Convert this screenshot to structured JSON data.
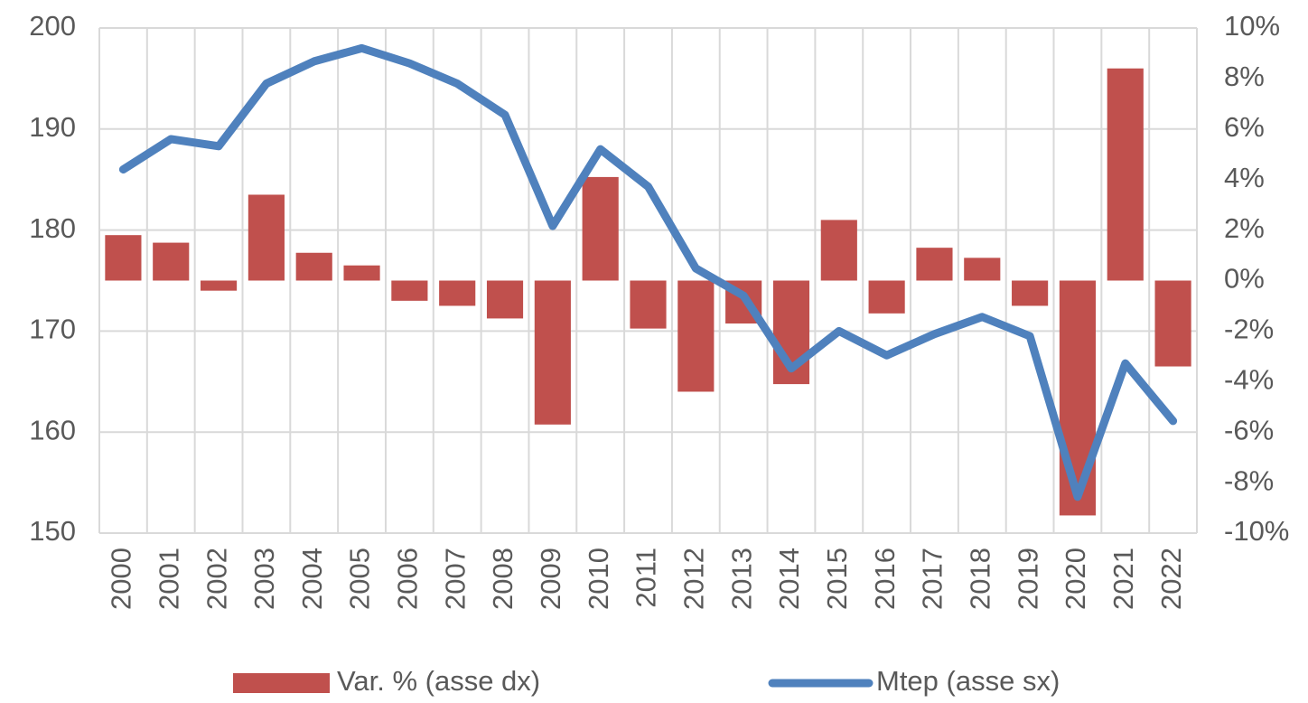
{
  "chart_data": {
    "type": "bar_line",
    "categories": [
      "2000",
      "2001",
      "2002",
      "2003",
      "2004",
      "2005",
      "2006",
      "2007",
      "2008",
      "2009",
      "2010",
      "2011",
      "2012",
      "2013",
      "2014",
      "2015",
      "2016",
      "2017",
      "2018",
      "2019",
      "2020",
      "2021",
      "2022"
    ],
    "series": [
      {
        "name": "Var. % (asse dx)",
        "type": "bar",
        "axis": "y2",
        "color": "#c0504d",
        "values": [
          1.8,
          1.5,
          -0.4,
          3.4,
          1.1,
          0.6,
          -0.8,
          -1.0,
          -1.5,
          -5.7,
          4.1,
          -1.9,
          -4.4,
          -1.7,
          -4.1,
          2.4,
          -1.3,
          1.3,
          0.9,
          -1.0,
          -9.3,
          8.4,
          -3.4
        ]
      },
      {
        "name": "Mtep (asse sx)",
        "type": "line",
        "color": "#4f81bd",
        "values": [
          186.0,
          189.0,
          188.3,
          194.5,
          196.7,
          198.0,
          196.5,
          194.5,
          191.4,
          180.4,
          188.0,
          184.3,
          176.2,
          173.5,
          166.3,
          170.0,
          167.6,
          169.7,
          171.4,
          169.5,
          153.6,
          166.8,
          161.1
        ]
      }
    ],
    "ylim": [
      150,
      200
    ],
    "yticks": [
      150,
      160,
      170,
      180,
      190,
      200
    ],
    "y2lim": [
      -10,
      10
    ],
    "y2ticks": [
      {
        "value": -10,
        "label": "-10%"
      },
      {
        "value": -8,
        "label": "-8%"
      },
      {
        "value": -6,
        "label": "-6%"
      },
      {
        "value": -4,
        "label": "-4%"
      },
      {
        "value": -2,
        "label": "-2%"
      },
      {
        "value": 0,
        "label": "0%"
      },
      {
        "value": 2,
        "label": "2%"
      },
      {
        "value": 4,
        "label": "4%"
      },
      {
        "value": 6,
        "label": "6%"
      },
      {
        "value": 8,
        "label": "8%"
      },
      {
        "value": 10,
        "label": "10%"
      }
    ],
    "grid": true,
    "legend": "bottom"
  }
}
